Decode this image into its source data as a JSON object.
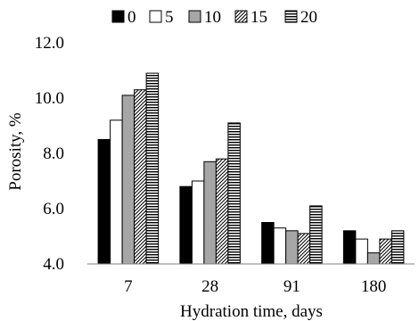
{
  "chart_data": {
    "type": "bar",
    "categories": [
      "7",
      "28",
      "91",
      "180"
    ],
    "series": [
      {
        "name": "0",
        "values": [
          8.5,
          6.8,
          5.5,
          5.2
        ],
        "pattern": "solid-black"
      },
      {
        "name": "5",
        "values": [
          9.2,
          7.0,
          5.3,
          4.9
        ],
        "pattern": "white"
      },
      {
        "name": "10",
        "values": [
          10.1,
          7.7,
          5.2,
          4.4
        ],
        "pattern": "gray"
      },
      {
        "name": "15",
        "values": [
          10.3,
          7.8,
          5.1,
          4.9
        ],
        "pattern": "diagonal-hatch"
      },
      {
        "name": "20",
        "values": [
          10.9,
          9.1,
          6.1,
          5.2
        ],
        "pattern": "horizontal-stripes"
      }
    ],
    "yticks": [
      "4.0",
      "6.0",
      "8.0",
      "10.0",
      "12.0"
    ],
    "ylim": [
      4.0,
      12.0
    ],
    "xlabel": "Hydration time, days",
    "ylabel": "Porosity, %",
    "legend_position": "top",
    "grid": false,
    "colors": {
      "solid": "#000000",
      "gray": "#a6a6a6",
      "white": "#ffffff",
      "stroke": "#000000",
      "axis": "#808080"
    }
  }
}
